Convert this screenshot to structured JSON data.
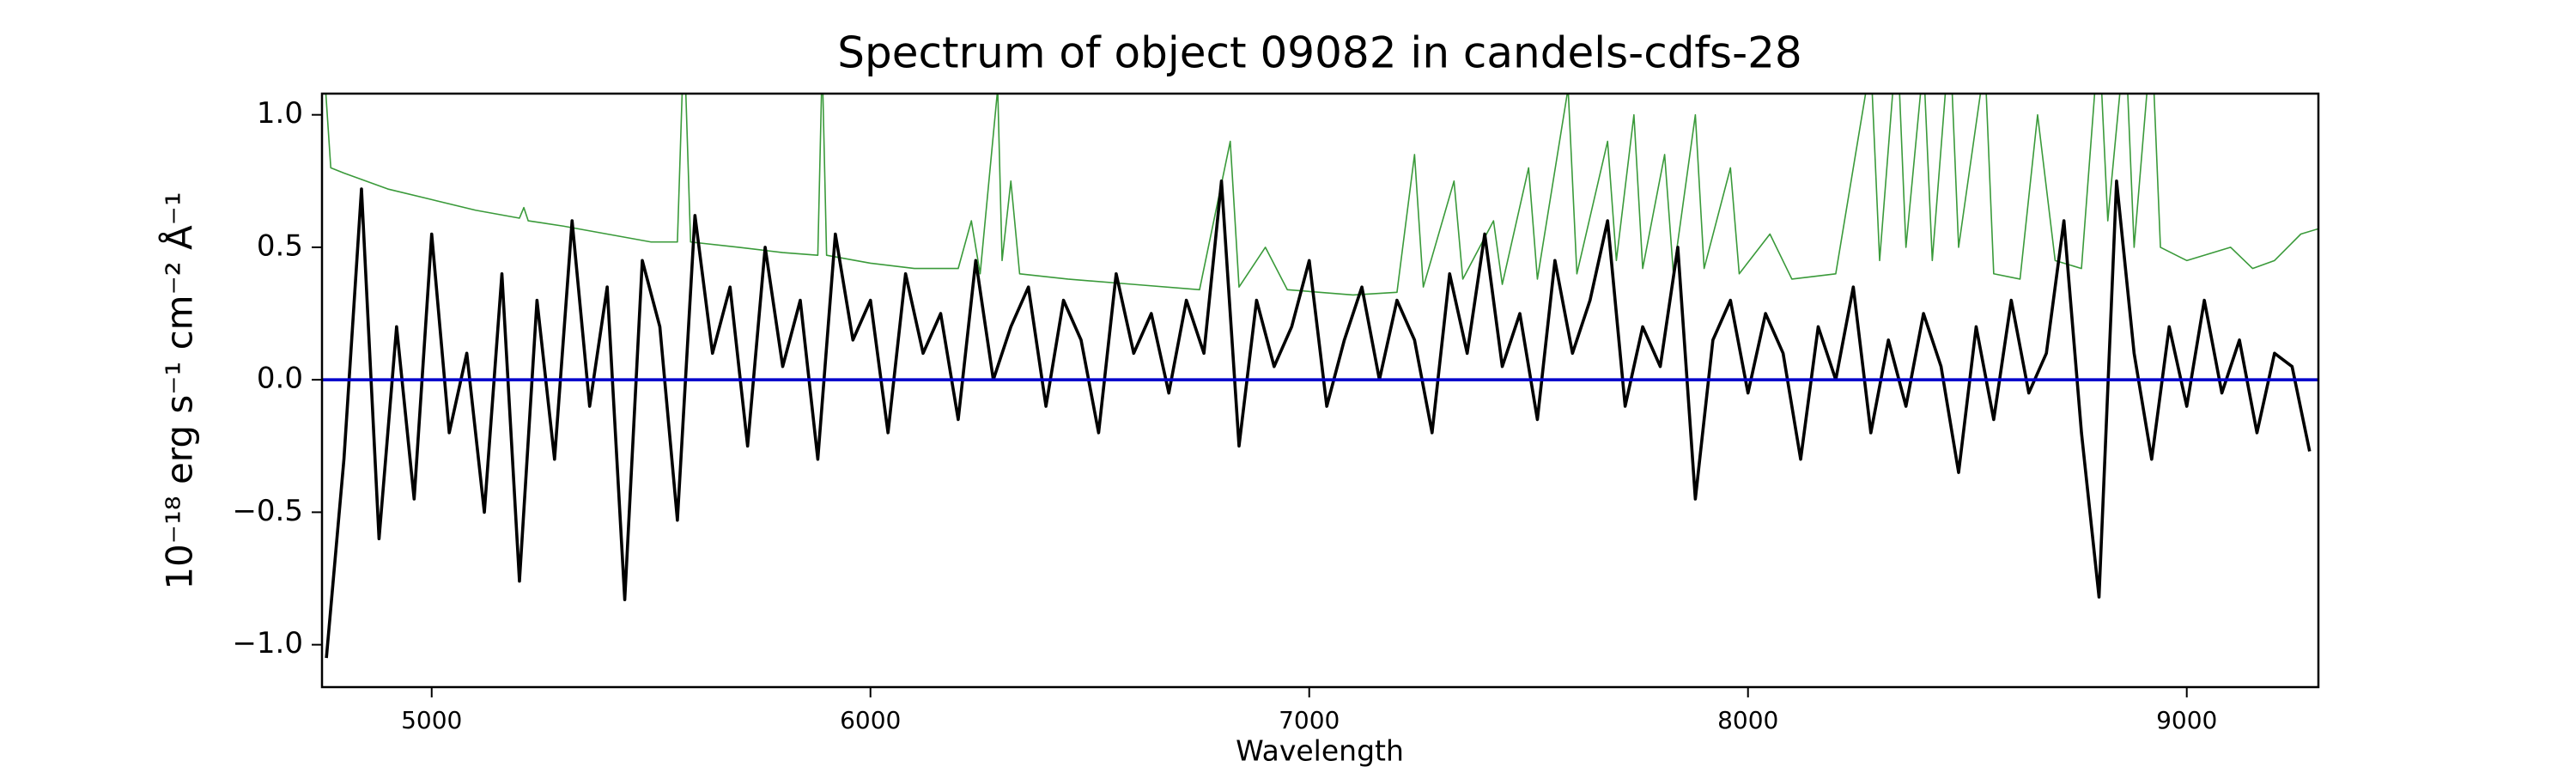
{
  "chart_data": {
    "type": "line",
    "title": "Spectrum of object 09082 in candels-cdfs-28",
    "xlabel": "Wavelength",
    "ylabel": "10⁻¹⁸ erg s⁻¹ cm⁻² Å⁻¹",
    "xlim": [
      4750,
      9300
    ],
    "ylim": [
      -1.16,
      1.08
    ],
    "xticks": [
      5000,
      6000,
      7000,
      8000,
      9000
    ],
    "yticks": [
      {
        "value": -1.0,
        "label": "−1.0"
      },
      {
        "value": -0.5,
        "label": "−0.5"
      },
      {
        "value": 0.0,
        "label": "0.0"
      },
      {
        "value": 0.5,
        "label": "0.5"
      },
      {
        "value": 1.0,
        "label": "1.0"
      }
    ],
    "grid": false,
    "series": [
      {
        "color": "#3a9a3a",
        "width": 1.6,
        "x": [
          4750,
          4770,
          4800,
          4900,
          5000,
          5100,
          5200,
          5210,
          5220,
          5300,
          5400,
          5500,
          5560,
          5575,
          5590,
          5700,
          5800,
          5880,
          5890,
          5900,
          6000,
          6100,
          6200,
          6230,
          6250,
          6290,
          6300,
          6320,
          6340,
          6450,
          6600,
          6750,
          6820,
          6840,
          6900,
          6950,
          7100,
          7200,
          7240,
          7260,
          7330,
          7350,
          7420,
          7440,
          7500,
          7520,
          7590,
          7610,
          7680,
          7700,
          7740,
          7760,
          7810,
          7830,
          7880,
          7900,
          7960,
          7980,
          8050,
          8100,
          8200,
          8280,
          8300,
          8340,
          8360,
          8400,
          8420,
          8460,
          8480,
          8540,
          8560,
          8620,
          8660,
          8700,
          8760,
          8800,
          8820,
          8860,
          8880,
          8920,
          8940,
          9000,
          9100,
          9150,
          9200,
          9260,
          9300
        ],
        "values": [
          1.3,
          0.8,
          0.78,
          0.72,
          0.68,
          0.64,
          0.61,
          0.65,
          0.6,
          0.58,
          0.55,
          0.52,
          0.52,
          1.3,
          0.52,
          0.5,
          0.48,
          0.47,
          1.2,
          0.47,
          0.44,
          0.42,
          0.42,
          0.6,
          0.4,
          1.1,
          0.45,
          0.75,
          0.4,
          0.38,
          0.36,
          0.34,
          0.9,
          0.35,
          0.5,
          0.34,
          0.32,
          0.33,
          0.85,
          0.35,
          0.75,
          0.38,
          0.6,
          0.36,
          0.8,
          0.38,
          1.1,
          0.4,
          0.9,
          0.45,
          1.0,
          0.42,
          0.85,
          0.4,
          1.0,
          0.42,
          0.8,
          0.4,
          0.55,
          0.38,
          0.4,
          1.2,
          0.45,
          1.3,
          0.5,
          1.2,
          0.45,
          1.3,
          0.5,
          1.2,
          0.4,
          0.38,
          1.0,
          0.45,
          0.42,
          1.3,
          0.6,
          1.3,
          0.5,
          1.3,
          0.5,
          0.45,
          0.5,
          0.42,
          0.45,
          0.55,
          0.57
        ]
      },
      {
        "color": "#000000",
        "width": 3.6,
        "x": [
          4760,
          4800,
          4840,
          4880,
          4920,
          4960,
          5000,
          5040,
          5080,
          5120,
          5160,
          5200,
          5240,
          5280,
          5320,
          5360,
          5400,
          5440,
          5480,
          5520,
          5560,
          5600,
          5640,
          5680,
          5720,
          5760,
          5800,
          5840,
          5880,
          5920,
          5960,
          6000,
          6040,
          6080,
          6120,
          6160,
          6200,
          6240,
          6280,
          6320,
          6360,
          6400,
          6440,
          6480,
          6520,
          6560,
          6600,
          6640,
          6680,
          6720,
          6760,
          6800,
          6840,
          6880,
          6920,
          6960,
          7000,
          7040,
          7080,
          7120,
          7160,
          7200,
          7240,
          7280,
          7320,
          7360,
          7400,
          7440,
          7480,
          7520,
          7560,
          7600,
          7640,
          7680,
          7720,
          7760,
          7800,
          7840,
          7880,
          7920,
          7960,
          8000,
          8040,
          8080,
          8120,
          8160,
          8200,
          8240,
          8280,
          8320,
          8360,
          8400,
          8440,
          8480,
          8520,
          8560,
          8600,
          8640,
          8680,
          8720,
          8760,
          8800,
          8840,
          8880,
          8920,
          8960,
          9000,
          9040,
          9080,
          9120,
          9160,
          9200,
          9240,
          9280
        ],
        "values": [
          -1.05,
          -0.3,
          0.72,
          -0.6,
          0.2,
          -0.45,
          0.55,
          -0.2,
          0.1,
          -0.5,
          0.4,
          -0.76,
          0.3,
          -0.3,
          0.6,
          -0.1,
          0.35,
          -0.83,
          0.45,
          0.2,
          -0.53,
          0.62,
          0.1,
          0.35,
          -0.25,
          0.5,
          0.05,
          0.3,
          -0.3,
          0.55,
          0.15,
          0.3,
          -0.2,
          0.4,
          0.1,
          0.25,
          -0.15,
          0.45,
          0.0,
          0.2,
          0.35,
          -0.1,
          0.3,
          0.15,
          -0.2,
          0.4,
          0.1,
          0.25,
          -0.05,
          0.3,
          0.1,
          0.75,
          -0.25,
          0.3,
          0.05,
          0.2,
          0.45,
          -0.1,
          0.15,
          0.35,
          0.0,
          0.3,
          0.15,
          -0.2,
          0.4,
          0.1,
          0.55,
          0.05,
          0.25,
          -0.15,
          0.45,
          0.1,
          0.3,
          0.6,
          -0.1,
          0.2,
          0.05,
          0.5,
          -0.45,
          0.15,
          0.3,
          -0.05,
          0.25,
          0.1,
          -0.3,
          0.2,
          0.0,
          0.35,
          -0.2,
          0.15,
          -0.1,
          0.25,
          0.05,
          -0.35,
          0.2,
          -0.15,
          0.3,
          -0.05,
          0.1,
          0.6,
          -0.2,
          -0.82,
          0.75,
          0.1,
          -0.3,
          0.2,
          -0.1,
          0.3,
          -0.05,
          0.15,
          -0.2,
          0.1,
          0.05,
          -0.27
        ]
      },
      {
        "color": "#0000cc",
        "width": 3.6,
        "x": [
          4750,
          9300
        ],
        "values": [
          0,
          0
        ]
      }
    ]
  }
}
